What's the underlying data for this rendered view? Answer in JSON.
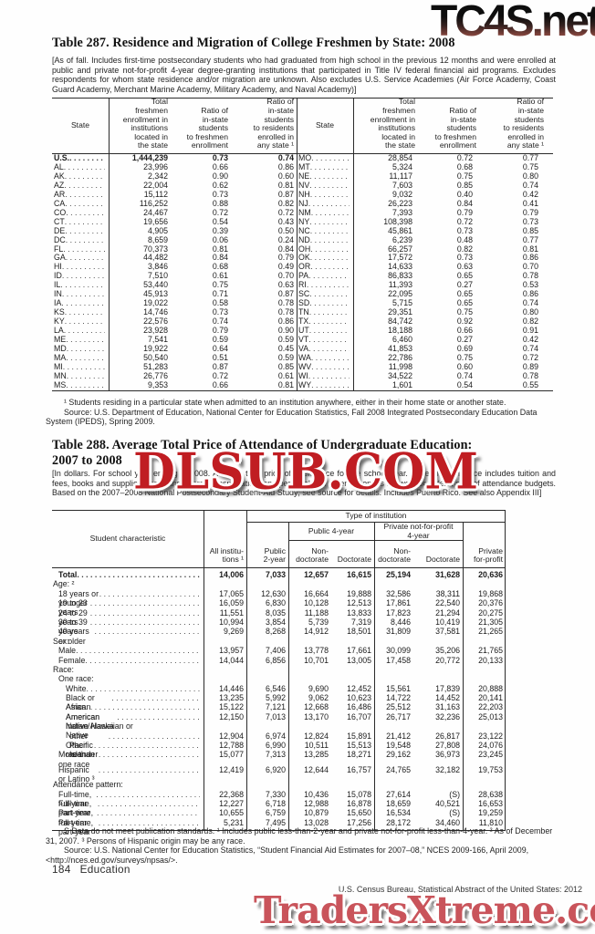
{
  "watermarks": {
    "top": "TC4S.net",
    "middle": "DLSUB.COM",
    "bottom": "TradersXtreme.com"
  },
  "table287": {
    "title": "Table 287. Residence and Migration of College Freshmen by State: 2008",
    "note": "[As of fall. Includes first-time postsecondary students who had graduated from high school in the previous 12 months and were enrolled at public and private not-for-profit 4-year degree-granting institutions that participated in Title IV federal financial aid programs. Excludes respondents for whom state residence and/or migration are unknown. Also excludes U.S. Service Academies (Air Force Academy, Coast Guard Academy, Merchant Marine Academy, Military Academy, and Naval Academy)]",
    "headers": {
      "state": "State",
      "total": "Total\nfreshmen\nenrollment in\ninstitutions\nlocated in\nthe state",
      "ratio_freshmen": "Ratio of\nin-state\nstudents\nto freshmen\nenrollment",
      "ratio_any": "Ratio of\nin-state\nstudents\nto residents\nenrolled in\nany state ¹"
    },
    "left_rows": [
      {
        "s": "U.S.",
        "t": "1,444,239",
        "r1": "0.73",
        "r2": "0.74",
        "bold": true
      },
      {
        "s": "AL",
        "t": "23,996",
        "r1": "0.66",
        "r2": "0.86"
      },
      {
        "s": "AK",
        "t": "2,342",
        "r1": "0.90",
        "r2": "0.60"
      },
      {
        "s": "AZ",
        "t": "22,004",
        "r1": "0.62",
        "r2": "0.81"
      },
      {
        "s": "AR",
        "t": "15,112",
        "r1": "0.73",
        "r2": "0.87"
      },
      {
        "s": "CA",
        "t": "116,252",
        "r1": "0.88",
        "r2": "0.82"
      },
      {
        "s": "CO",
        "t": "24,467",
        "r1": "0.72",
        "r2": "0.72"
      },
      {
        "s": "CT",
        "t": "19,656",
        "r1": "0.54",
        "r2": "0.43"
      },
      {
        "s": "DE",
        "t": "4,905",
        "r1": "0.39",
        "r2": "0.50"
      },
      {
        "s": "DC",
        "t": "8,659",
        "r1": "0.06",
        "r2": "0.24"
      },
      {
        "s": "FL",
        "t": "70,373",
        "r1": "0.81",
        "r2": "0.84"
      },
      {
        "s": "GA",
        "t": "44,482",
        "r1": "0.84",
        "r2": "0.79"
      },
      {
        "s": "HI",
        "t": "3,846",
        "r1": "0.68",
        "r2": "0.49"
      },
      {
        "s": "ID",
        "t": "7,510",
        "r1": "0.61",
        "r2": "0.70"
      },
      {
        "s": "IL",
        "t": "53,440",
        "r1": "0.75",
        "r2": "0.63"
      },
      {
        "s": "IN",
        "t": "45,913",
        "r1": "0.71",
        "r2": "0.87"
      },
      {
        "s": "IA",
        "t": "19,022",
        "r1": "0.58",
        "r2": "0.78"
      },
      {
        "s": "KS",
        "t": "14,746",
        "r1": "0.73",
        "r2": "0.78"
      },
      {
        "s": "KY",
        "t": "22,576",
        "r1": "0.74",
        "r2": "0.86"
      },
      {
        "s": "LA",
        "t": "23,928",
        "r1": "0.79",
        "r2": "0.90"
      },
      {
        "s": "ME",
        "t": "7,541",
        "r1": "0.59",
        "r2": "0.59"
      },
      {
        "s": "MD",
        "t": "19,922",
        "r1": "0.64",
        "r2": "0.45"
      },
      {
        "s": "MA",
        "t": "50,540",
        "r1": "0.51",
        "r2": "0.59"
      },
      {
        "s": "MI",
        "t": "51,283",
        "r1": "0.87",
        "r2": "0.85"
      },
      {
        "s": "MN",
        "t": "26,776",
        "r1": "0.72",
        "r2": "0.61"
      },
      {
        "s": "MS",
        "t": "9,353",
        "r1": "0.66",
        "r2": "0.81"
      }
    ],
    "right_rows": [
      {
        "s": "MO",
        "t": "28,854",
        "r1": "0.72",
        "r2": "0.77"
      },
      {
        "s": "MT",
        "t": "5,324",
        "r1": "0.68",
        "r2": "0.75"
      },
      {
        "s": "NE",
        "t": "11,117",
        "r1": "0.75",
        "r2": "0.80"
      },
      {
        "s": "NV",
        "t": "7,603",
        "r1": "0.85",
        "r2": "0.74"
      },
      {
        "s": "NH",
        "t": "9,032",
        "r1": "0.40",
        "r2": "0.42"
      },
      {
        "s": "NJ",
        "t": "26,223",
        "r1": "0.84",
        "r2": "0.41"
      },
      {
        "s": "NM",
        "t": "7,393",
        "r1": "0.79",
        "r2": "0.79"
      },
      {
        "s": "NY",
        "t": "108,398",
        "r1": "0.72",
        "r2": "0.73"
      },
      {
        "s": "NC",
        "t": "45,861",
        "r1": "0.73",
        "r2": "0.85"
      },
      {
        "s": "ND",
        "t": "6,239",
        "r1": "0.48",
        "r2": "0.77"
      },
      {
        "s": "OH",
        "t": "66,257",
        "r1": "0.82",
        "r2": "0.81"
      },
      {
        "s": "OK",
        "t": "17,572",
        "r1": "0.73",
        "r2": "0.86"
      },
      {
        "s": "OR",
        "t": "14,633",
        "r1": "0.63",
        "r2": "0.70"
      },
      {
        "s": "PA",
        "t": "86,833",
        "r1": "0.65",
        "r2": "0.78"
      },
      {
        "s": "RI",
        "t": "11,393",
        "r1": "0.27",
        "r2": "0.53"
      },
      {
        "s": "SC",
        "t": "22,095",
        "r1": "0.65",
        "r2": "0.86"
      },
      {
        "s": "SD",
        "t": "5,715",
        "r1": "0.65",
        "r2": "0.74"
      },
      {
        "s": "TN",
        "t": "29,351",
        "r1": "0.75",
        "r2": "0.80"
      },
      {
        "s": "TX",
        "t": "84,742",
        "r1": "0.92",
        "r2": "0.82"
      },
      {
        "s": "UT",
        "t": "18,188",
        "r1": "0.66",
        "r2": "0.91"
      },
      {
        "s": "VT",
        "t": "6,460",
        "r1": "0.27",
        "r2": "0.42"
      },
      {
        "s": "VA",
        "t": "41,853",
        "r1": "0.69",
        "r2": "0.74"
      },
      {
        "s": "WA",
        "t": "22,786",
        "r1": "0.75",
        "r2": "0.72"
      },
      {
        "s": "WV",
        "t": "11,998",
        "r1": "0.60",
        "r2": "0.89"
      },
      {
        "s": "WI",
        "t": "34,522",
        "r1": "0.74",
        "r2": "0.78"
      },
      {
        "s": "WY",
        "t": "1,601",
        "r1": "0.54",
        "r2": "0.55"
      }
    ],
    "footnote": "¹ Students residing in a particular state when admitted to an institution anywhere, either in their home state or another state.",
    "source": "Source: U.S. Department of Education, National Center for Education Statistics, Fall 2008 Integrated Postsecondary Education Data System (IPEDS), Spring 2009."
  },
  "table288": {
    "title_line1": "Table 288. Average Total Price of Attendance of Undergraduate Education:",
    "title_line2": "2007 to 2008",
    "note": "[In dollars. For school year ending in 2008. Average total price of attendance for the school year. Price of attendance includes tuition and fees, books and supplies, room and board, transportation, and personal and other expenses allowed for federal cost of attendance budgets. Based on the 2007–2008 National Postsecondary Student-Aid Study; see source for details. Includes Puerto Rico. See also Appendix III]",
    "headers": {
      "student_characteristic": "Student characteristic",
      "all_institutions": "All institu-\ntions ¹",
      "type_of_institution": "Type of institution",
      "public_2year": "Public\n2-year",
      "public_4year": "Public 4-year",
      "private_nfp_4year": "Private not-for-profit\n4-year",
      "non_doctorate": "Non-\ndoctorate",
      "doctorate": "Doctorate",
      "private_for_profit": "Private\nfor-profit"
    },
    "rows": [
      {
        "label": "Total",
        "indent": 1,
        "bold": true,
        "leader": true,
        "values": [
          "14,006",
          "7,033",
          "12,657",
          "16,615",
          "25,194",
          "31,628",
          "20,636"
        ]
      },
      {
        "label": "Age: ²",
        "indent": 0
      },
      {
        "label": "18 years or younger",
        "indent": 1,
        "leader": true,
        "values": [
          "17,065",
          "12,630",
          "16,664",
          "19,888",
          "32,586",
          "38,311",
          "19,868"
        ]
      },
      {
        "label": "19 to 23 years",
        "indent": 1,
        "leader": true,
        "values": [
          "16,059",
          "6,830",
          "10,128",
          "12,513",
          "17,861",
          "22,540",
          "20,376"
        ]
      },
      {
        "label": "24 to 29 years",
        "indent": 1,
        "leader": true,
        "values": [
          "11,551",
          "8,035",
          "11,188",
          "13,833",
          "17,823",
          "21,294",
          "20,275"
        ]
      },
      {
        "label": "30 to 39 years",
        "indent": 1,
        "leader": true,
        "values": [
          "10,994",
          "3,854",
          "5,739",
          "7,319",
          "8,446",
          "10,419",
          "21,305"
        ]
      },
      {
        "label": "40 years or older",
        "indent": 1,
        "leader": true,
        "values": [
          "9,269",
          "8,268",
          "14,912",
          "18,501",
          "31,809",
          "37,581",
          "21,265"
        ]
      },
      {
        "label": "Sex:",
        "indent": 0
      },
      {
        "label": "Male",
        "indent": 1,
        "leader": true,
        "values": [
          "13,957",
          "7,406",
          "13,778",
          "17,661",
          "30,099",
          "35,206",
          "21,765"
        ]
      },
      {
        "label": "Female",
        "indent": 1,
        "leader": true,
        "values": [
          "14,044",
          "6,856",
          "10,701",
          "13,005",
          "17,458",
          "20,772",
          "20,133"
        ]
      },
      {
        "label": "Race:",
        "indent": 0
      },
      {
        "label": "One race:",
        "indent": 1
      },
      {
        "label": "White",
        "indent": 2,
        "leader": true,
        "values": [
          "14,446",
          "6,546",
          "9,690",
          "12,452",
          "15,561",
          "17,839",
          "20,888"
        ]
      },
      {
        "label": "Black or African American",
        "indent": 2,
        "leader": true,
        "values": [
          "13,235",
          "5,992",
          "9,062",
          "10,623",
          "14,722",
          "14,452",
          "20,141"
        ]
      },
      {
        "label": "Asian",
        "indent": 2,
        "leader": true,
        "values": [
          "15,122",
          "7,121",
          "12,668",
          "16,486",
          "25,512",
          "31,163",
          "22,203"
        ]
      },
      {
        "label": "American Indian/Alaska Native",
        "indent": 2,
        "leader": true,
        "values": [
          "12,150",
          "7,013",
          "13,170",
          "16,707",
          "26,717",
          "32,236",
          "25,013"
        ]
      },
      {
        "label": "Native Hawaiian or",
        "indent": 2
      },
      {
        "label": "other Pacific Islander",
        "indent": 3,
        "leader": true,
        "values": [
          "12,904",
          "6,974",
          "12,824",
          "15,891",
          "21,412",
          "26,817",
          "23,122"
        ]
      },
      {
        "label": "Other race",
        "indent": 2,
        "leader": true,
        "values": [
          "12,788",
          "6,990",
          "10,511",
          "15,513",
          "19,548",
          "27,808",
          "24,076"
        ]
      },
      {
        "label": "More than one race",
        "indent": 1,
        "leader": true,
        "values": [
          "15,077",
          "7,313",
          "13,285",
          "18,271",
          "29,162",
          "36,973",
          "23,245"
        ]
      },
      {
        "label": "Hispanic or Latino ³",
        "indent": 1,
        "gap": true,
        "leader": true,
        "values": [
          "12,419",
          "6,920",
          "12,644",
          "16,757",
          "24,765",
          "32,182",
          "19,753"
        ]
      },
      {
        "label": "Attendance pattern:",
        "indent": 0,
        "gap": true
      },
      {
        "label": "Full-time, full-year",
        "indent": 1,
        "leader": true,
        "values": [
          "22,368",
          "7,330",
          "10,436",
          "15,078",
          "27,614",
          "(S)",
          "28,638"
        ]
      },
      {
        "label": "Full-time, part-year",
        "indent": 1,
        "leader": true,
        "values": [
          "12,227",
          "6,718",
          "12,988",
          "16,878",
          "18,659",
          "40,521",
          "16,653"
        ]
      },
      {
        "label": "Part-time, full-year",
        "indent": 1,
        "leader": true,
        "values": [
          "10,655",
          "6,759",
          "10,879",
          "15,650",
          "16,534",
          "(S)",
          "19,259"
        ]
      },
      {
        "label": "Part-time, part-year",
        "indent": 1,
        "leader": true,
        "values": [
          "5,231",
          "7,495",
          "13,028",
          "17,256",
          "28,172",
          "34,460",
          "11,810"
        ]
      }
    ],
    "footnote": "S Data do not meet publication standards. ¹ Includes public less-than-2-year and private not-for-profit less-than-4-year. ² As of December 31, 2007. ³ Persons of Hispanic origin may be any race.",
    "source": "Source: U.S. National Center for Education Statistics, “Student Financial Aid Estimates for 2007–08,” NCES 2009-166, April 2009, <http://nces.ed.gov/surveys/npsas/>."
  },
  "footer": {
    "page": "184",
    "section": "Education",
    "source": "U.S. Census Bureau, Statistical Abstract of the United States: 2012"
  }
}
